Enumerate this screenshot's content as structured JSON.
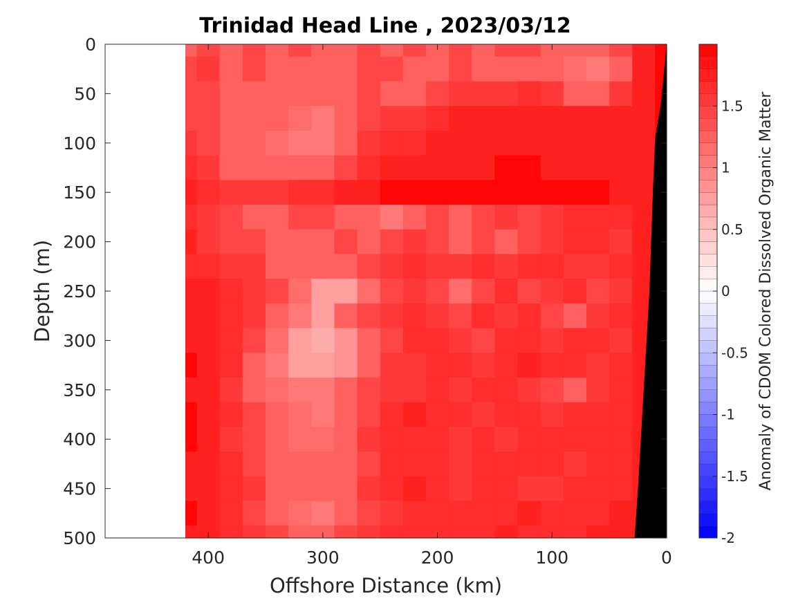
{
  "chart_data": {
    "type": "heatmap",
    "title": "Trinidad Head Line , 2023/03/12",
    "xlabel": "Offshore Distance (km)",
    "ylabel": "Depth (m)",
    "xlim": [
      490,
      0
    ],
    "ylim": [
      0,
      500
    ],
    "x_reversed": true,
    "y_reversed": true,
    "x_ticks": [
      400,
      300,
      200,
      100,
      0
    ],
    "x_tick_labels": [
      "400",
      "300",
      "200",
      "100",
      "0"
    ],
    "y_ticks": [
      0,
      50,
      100,
      150,
      200,
      250,
      300,
      350,
      400,
      450,
      500
    ],
    "y_tick_labels": [
      "0",
      "50",
      "100",
      "150",
      "200",
      "250",
      "300",
      "350",
      "400",
      "450",
      "500"
    ],
    "data_extent_km": [
      0,
      420
    ],
    "colorbar": {
      "label": "Anomaly of CDOM Colored Dissolved Organic Matter",
      "range": [
        -2,
        2
      ],
      "ticks": [
        1.5,
        1,
        0.5,
        0,
        -0.5,
        -1,
        -1.5,
        -2
      ],
      "tick_labels": [
        "1.5",
        "1",
        "0.5",
        "0",
        "-0.5",
        "-1",
        "-1.5",
        "-2"
      ],
      "levels": 40,
      "colormap": "blue-white-red",
      "low_color": "#0000ff",
      "mid_color": "#ffffff",
      "high_color": "#ff0000"
    },
    "depth_rows": [
      0,
      25,
      50,
      75,
      100,
      125,
      150,
      175,
      200,
      225,
      250,
      275,
      300,
      325,
      350,
      375,
      400,
      425,
      450,
      475,
      500
    ],
    "distance_cols": [
      420,
      400,
      380,
      360,
      340,
      320,
      300,
      280,
      260,
      240,
      220,
      200,
      180,
      160,
      140,
      120,
      100,
      80,
      60,
      40,
      20,
      0
    ],
    "values": [
      [
        1.3,
        1.4,
        1.2,
        1.4,
        1.3,
        1.4,
        1.3,
        1.3,
        1.4,
        1.3,
        1.4,
        1.3,
        1.4,
        1.3,
        1.4,
        1.4,
        1.3,
        1.2,
        1.2,
        1.4,
        1.8,
        1.9
      ],
      [
        1.4,
        1.5,
        1.3,
        1.4,
        1.3,
        1.3,
        1.2,
        1.3,
        1.4,
        1.4,
        1.3,
        1.3,
        1.4,
        1.3,
        1.3,
        1.3,
        1.2,
        1.1,
        1.0,
        1.3,
        1.7,
        1.9
      ],
      [
        1.4,
        1.4,
        1.3,
        1.2,
        1.3,
        1.2,
        1.2,
        1.3,
        1.4,
        1.3,
        1.3,
        1.4,
        1.5,
        1.5,
        1.5,
        1.6,
        1.5,
        1.3,
        1.3,
        1.5,
        1.7,
        1.9
      ],
      [
        1.4,
        1.4,
        1.3,
        1.3,
        1.2,
        1.1,
        1.0,
        1.2,
        1.4,
        1.5,
        1.5,
        1.6,
        1.7,
        1.7,
        1.7,
        1.7,
        1.7,
        1.7,
        1.7,
        1.7,
        1.8,
        1.9
      ],
      [
        1.5,
        1.4,
        1.3,
        1.2,
        1.1,
        1.0,
        1.0,
        1.2,
        1.5,
        1.6,
        1.6,
        1.7,
        1.7,
        1.8,
        1.8,
        1.8,
        1.8,
        1.7,
        1.8,
        1.8,
        1.8,
        1.9
      ],
      [
        1.6,
        1.5,
        1.3,
        1.3,
        1.2,
        1.2,
        1.2,
        1.4,
        1.6,
        1.7,
        1.8,
        1.8,
        1.8,
        1.8,
        1.9,
        1.9,
        1.8,
        1.8,
        1.8,
        1.8,
        1.8,
        1.9
      ],
      [
        1.7,
        1.6,
        1.5,
        1.5,
        1.5,
        1.6,
        1.6,
        1.7,
        1.8,
        1.9,
        1.9,
        1.9,
        1.9,
        1.9,
        1.9,
        1.9,
        1.9,
        1.9,
        1.9,
        1.8,
        1.8,
        1.9
      ],
      [
        1.6,
        1.5,
        1.4,
        1.3,
        1.3,
        1.4,
        1.4,
        1.3,
        1.2,
        1.0,
        1.3,
        1.4,
        1.2,
        1.4,
        1.5,
        1.4,
        1.5,
        1.6,
        1.6,
        1.6,
        1.7,
        1.9
      ],
      [
        1.8,
        1.5,
        1.4,
        1.4,
        1.3,
        1.2,
        1.2,
        1.4,
        1.3,
        1.4,
        1.5,
        1.4,
        1.3,
        1.4,
        1.2,
        1.4,
        1.5,
        1.6,
        1.6,
        1.5,
        1.7,
        1.9
      ],
      [
        1.6,
        1.6,
        1.5,
        1.5,
        1.3,
        1.3,
        1.2,
        1.3,
        1.4,
        1.5,
        1.6,
        1.5,
        1.5,
        1.6,
        1.5,
        1.6,
        1.6,
        1.5,
        1.5,
        1.6,
        1.7,
        1.9
      ],
      [
        1.8,
        1.7,
        1.6,
        1.5,
        1.4,
        1.1,
        0.7,
        0.8,
        1.1,
        1.4,
        1.5,
        1.4,
        1.1,
        1.4,
        1.6,
        1.4,
        1.5,
        1.6,
        1.4,
        1.5,
        1.7,
        1.9
      ],
      [
        1.8,
        1.7,
        1.6,
        1.5,
        1.2,
        1.0,
        0.8,
        1.2,
        1.4,
        1.5,
        1.6,
        1.5,
        1.4,
        1.6,
        1.5,
        1.6,
        1.4,
        1.2,
        1.5,
        1.6,
        1.7,
        1.9
      ],
      [
        1.7,
        1.8,
        1.6,
        1.4,
        1.1,
        0.8,
        0.6,
        0.9,
        1.2,
        1.4,
        1.6,
        1.6,
        1.5,
        1.4,
        1.6,
        1.6,
        1.5,
        1.6,
        1.6,
        1.5,
        1.7,
        1.9
      ],
      [
        1.9,
        1.8,
        1.6,
        1.3,
        1.0,
        0.7,
        0.7,
        0.9,
        1.3,
        1.5,
        1.5,
        1.6,
        1.6,
        1.5,
        1.6,
        1.7,
        1.6,
        1.6,
        1.5,
        1.6,
        1.8,
        1.9
      ],
      [
        1.8,
        1.7,
        1.5,
        1.3,
        1.1,
        1.0,
        1.0,
        1.2,
        1.4,
        1.5,
        1.5,
        1.6,
        1.5,
        1.6,
        1.6,
        1.5,
        1.4,
        1.2,
        1.5,
        1.6,
        1.8,
        1.9
      ],
      [
        1.9,
        1.8,
        1.6,
        1.4,
        1.2,
        1.1,
        1.0,
        1.2,
        1.4,
        1.6,
        1.7,
        1.6,
        1.6,
        1.5,
        1.6,
        1.6,
        1.5,
        1.6,
        1.6,
        1.6,
        1.8,
        1.9
      ],
      [
        1.9,
        1.8,
        1.5,
        1.4,
        1.2,
        1.1,
        1.1,
        1.3,
        1.5,
        1.6,
        1.6,
        1.6,
        1.5,
        1.6,
        1.5,
        1.6,
        1.6,
        1.6,
        1.6,
        1.6,
        1.8,
        1.9
      ],
      [
        1.8,
        1.8,
        1.6,
        1.4,
        1.3,
        1.2,
        1.2,
        1.3,
        1.4,
        1.6,
        1.6,
        1.6,
        1.5,
        1.6,
        1.6,
        1.6,
        1.6,
        1.5,
        1.6,
        1.6,
        1.8,
        1.9
      ],
      [
        1.8,
        1.7,
        1.6,
        1.5,
        1.3,
        1.2,
        1.2,
        1.3,
        1.5,
        1.6,
        1.7,
        1.6,
        1.5,
        1.6,
        1.6,
        1.5,
        1.5,
        1.6,
        1.6,
        1.6,
        1.8,
        1.9
      ],
      [
        1.9,
        1.8,
        1.6,
        1.4,
        1.2,
        1.1,
        1.0,
        1.2,
        1.4,
        1.5,
        1.6,
        1.6,
        1.6,
        1.6,
        1.6,
        1.7,
        1.6,
        1.6,
        1.6,
        1.7,
        1.8,
        1.9
      ],
      [
        1.8,
        1.7,
        1.6,
        1.5,
        1.4,
        1.3,
        1.3,
        1.4,
        1.5,
        1.6,
        1.6,
        1.6,
        1.6,
        1.6,
        1.7,
        1.6,
        1.6,
        1.6,
        1.7,
        1.7,
        1.8,
        1.9
      ]
    ],
    "bathymetry": {
      "color": "#000000",
      "seafloor_depth_at_distance": [
        [
          0,
          0
        ],
        [
          5,
          60
        ],
        [
          10,
          95
        ],
        [
          12,
          150
        ],
        [
          15,
          250
        ],
        [
          20,
          350
        ],
        [
          25,
          450
        ],
        [
          28,
          500
        ]
      ]
    }
  }
}
